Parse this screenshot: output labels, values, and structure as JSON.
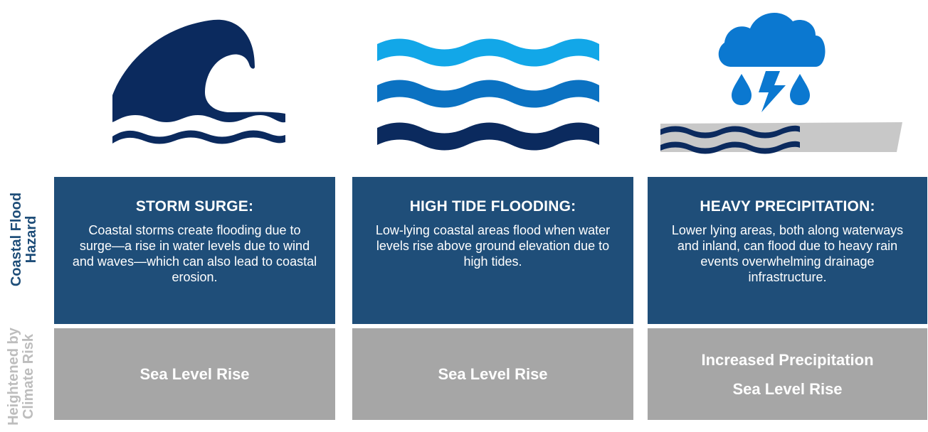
{
  "row_labels": {
    "hazard": "Coastal Flood Hazard",
    "climate": "Heightened by Climate Risk"
  },
  "columns": [
    {
      "icon": "tsunami-wave-icon",
      "title": "STORM SURGE:",
      "description": "Coastal storms create flooding due to surge—a rise in water levels due to wind and waves—which can also lead to coastal erosion.",
      "climate_risks": [
        "Sea Level Rise"
      ]
    },
    {
      "icon": "tide-waves-icon",
      "title": "HIGH TIDE FLOODING:",
      "description": "Low-lying coastal areas flood when water levels rise above ground elevation due to high tides.",
      "climate_risks": [
        "Sea Level Rise"
      ]
    },
    {
      "icon": "storm-cloud-rain-icon",
      "title": "HEAVY PRECIPITATION:",
      "description": "Lower lying areas, both along waterways and inland, can flood due to heavy rain events overwhelming drainage infrastructure.",
      "climate_risks": [
        "Increased Precipitation",
        "Sea Level Rise"
      ]
    }
  ],
  "colors": {
    "navy": "#0b2a5e",
    "hazard_box": "#1f4e79",
    "climate_box": "#a6a6a6",
    "wave_light": "#12a7e8",
    "wave_mid": "#0b72c2",
    "cloud": "#0b78d0",
    "ground": "#c8c8c8"
  }
}
